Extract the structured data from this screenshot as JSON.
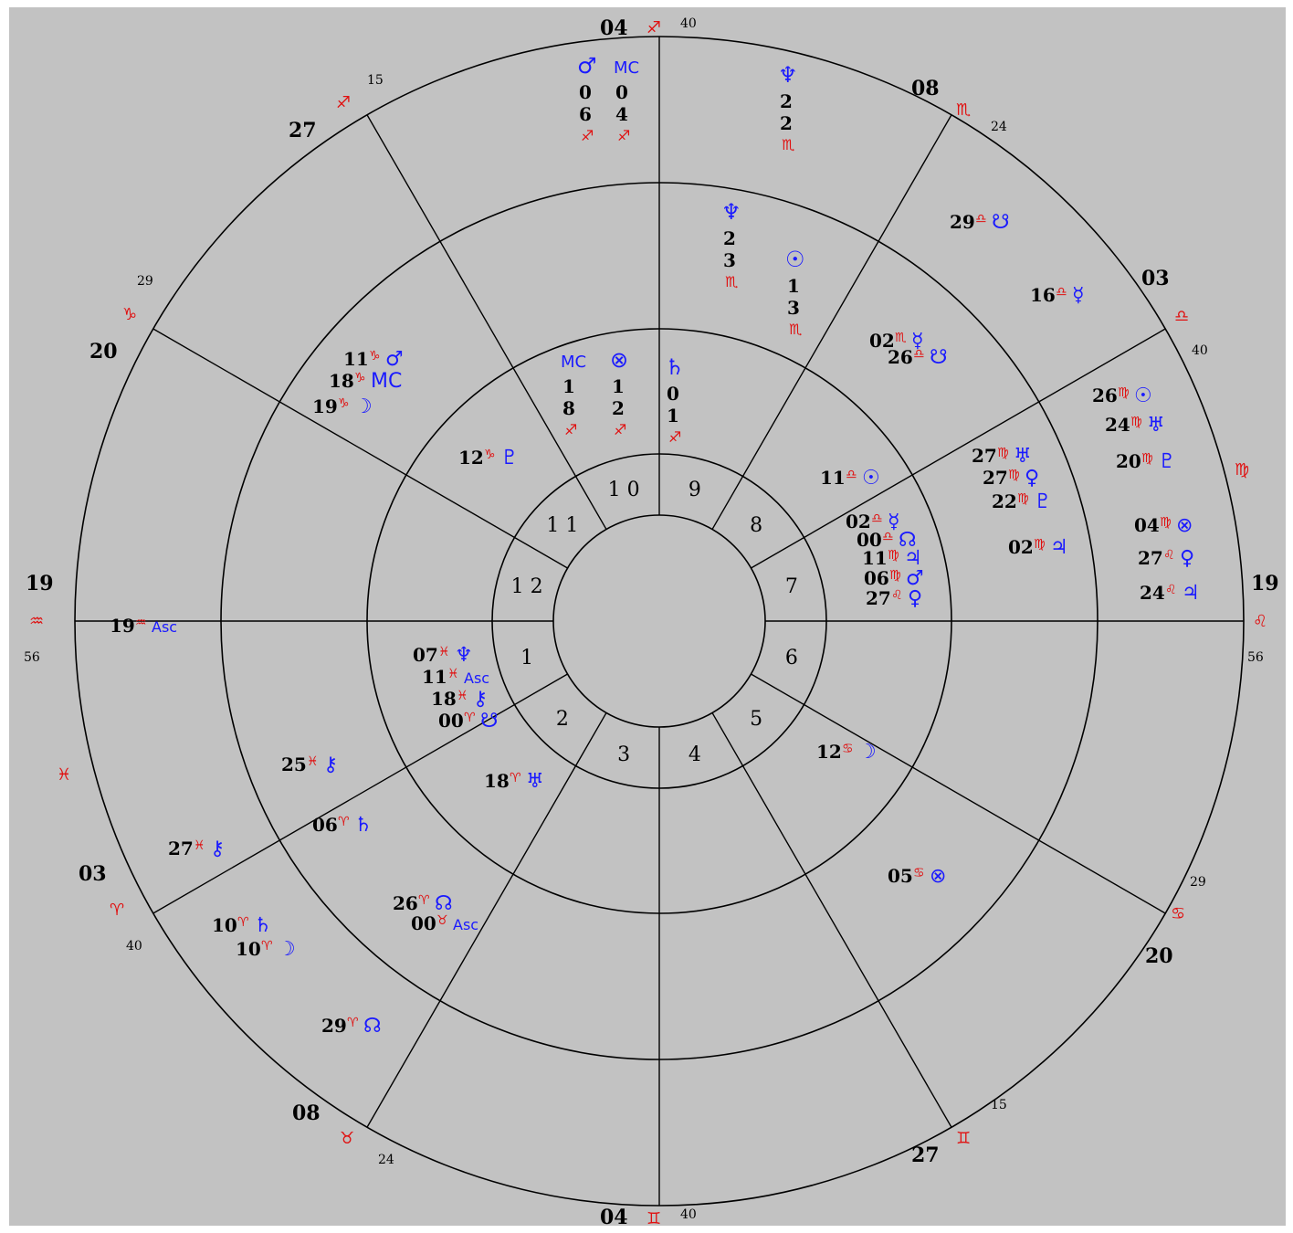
{
  "chart": {
    "house_numbers": [
      "1",
      "2",
      "3",
      "4",
      "5",
      "6",
      "7",
      "8",
      "9",
      "10",
      "11",
      "12"
    ],
    "outer_cusps": [
      {
        "deg": "04",
        "sign": "♐",
        "min": "40"
      },
      {
        "deg": "08",
        "sign": "♏",
        "min": "24"
      },
      {
        "deg": "03",
        "sign": "♎",
        "min": "40"
      },
      {
        "deg": "",
        "sign": "♍",
        "min": ""
      },
      {
        "deg": "19",
        "sign": "♌",
        "min": "56"
      },
      {
        "deg": "20",
        "sign": "♋",
        "min": "29"
      },
      {
        "deg": "27",
        "sign": "♊",
        "min": "15"
      },
      {
        "deg": "04",
        "sign": "♊",
        "min": "40"
      },
      {
        "deg": "08",
        "sign": "♉",
        "min": "24"
      },
      {
        "deg": "03",
        "sign": "♈",
        "min": "40"
      },
      {
        "deg": "",
        "sign": "♓",
        "min": ""
      },
      {
        "deg": "19",
        "sign": "♒",
        "min": "56"
      },
      {
        "deg": "20",
        "sign": "♑",
        "min": "29"
      },
      {
        "deg": "27",
        "sign": "♐",
        "min": "15"
      }
    ],
    "bands": {
      "outer": [
        {
          "glyph": "♂",
          "deg": "06",
          "sign": "♐"
        },
        {
          "glyph": "MC",
          "deg": "04",
          "sign": "♐"
        },
        {
          "glyph": "♆",
          "deg": "22",
          "sign": "♏"
        },
        {
          "glyph": "☋",
          "deg": "29",
          "sign": "♎"
        },
        {
          "glyph": "☿",
          "deg": "16",
          "sign": "♎"
        },
        {
          "glyph": "☉",
          "deg": "26",
          "sign": "♍"
        },
        {
          "glyph": "♅",
          "deg": "24",
          "sign": "♍"
        },
        {
          "glyph": "♇",
          "deg": "20",
          "sign": "♍"
        },
        {
          "glyph": "⊗",
          "deg": "04",
          "sign": "♍"
        },
        {
          "glyph": "♀",
          "deg": "27",
          "sign": "♌"
        },
        {
          "glyph": "♃",
          "deg": "24",
          "sign": "♌"
        },
        {
          "glyph": "⊗",
          "deg": "05",
          "sign": "♋"
        },
        {
          "glyph": "☊",
          "deg": "29",
          "sign": "♈"
        },
        {
          "glyph": "♄",
          "deg": "10",
          "sign": "♈"
        },
        {
          "glyph": "☽",
          "deg": "10",
          "sign": "♈"
        },
        {
          "glyph": "⚷",
          "deg": "27",
          "sign": "♓"
        },
        {
          "glyph": "Asc",
          "deg": "19",
          "sign": "♒"
        }
      ],
      "middle": [
        {
          "glyph": "♆",
          "deg": "23",
          "sign": "♏"
        },
        {
          "glyph": "☉",
          "deg": "13",
          "sign": "♏"
        },
        {
          "glyph": "☿",
          "deg": "02",
          "sign": "♏"
        },
        {
          "glyph": "☋",
          "deg": "26",
          "sign": "♎"
        },
        {
          "glyph": "♅",
          "deg": "27",
          "sign": "♍"
        },
        {
          "glyph": "♀",
          "deg": "27",
          "sign": "♍"
        },
        {
          "glyph": "♇",
          "deg": "22",
          "sign": "♍"
        },
        {
          "glyph": "♃",
          "deg": "02",
          "sign": "♍"
        },
        {
          "glyph": "☽",
          "deg": "12",
          "sign": "♋"
        },
        {
          "glyph": "♄",
          "deg": "06",
          "sign": "♈"
        },
        {
          "glyph": "⚷",
          "deg": "25",
          "sign": "♓"
        },
        {
          "glyph": "☊",
          "deg": "26",
          "sign": "♈"
        },
        {
          "glyph": "Asc",
          "deg": "00",
          "sign": "♉"
        },
        {
          "glyph": "♂",
          "deg": "11",
          "sign": "♑"
        },
        {
          "glyph": "MC",
          "deg": "18",
          "sign": "♑"
        },
        {
          "glyph": "☽",
          "deg": "19",
          "sign": "♑"
        }
      ],
      "inner": [
        {
          "glyph": "MC",
          "deg": "18",
          "sign": "♐"
        },
        {
          "glyph": "⊗",
          "deg": "12",
          "sign": "♐"
        },
        {
          "glyph": "♄",
          "deg": "01",
          "sign": "♐"
        },
        {
          "glyph": "☉",
          "deg": "11",
          "sign": "♎"
        },
        {
          "glyph": "☿",
          "deg": "02",
          "sign": "♎"
        },
        {
          "glyph": "☊",
          "deg": "00",
          "sign": "♎"
        },
        {
          "glyph": "♃",
          "deg": "11",
          "sign": "♍"
        },
        {
          "glyph": "♂",
          "deg": "06",
          "sign": "♍"
        },
        {
          "glyph": "♀",
          "deg": "27",
          "sign": "♌"
        },
        {
          "glyph": "♅",
          "deg": "18",
          "sign": "♈"
        },
        {
          "glyph": "♆",
          "deg": "07",
          "sign": "♓"
        },
        {
          "glyph": "Asc",
          "deg": "11",
          "sign": "♓"
        },
        {
          "glyph": "⚷",
          "deg": "18",
          "sign": "♓"
        },
        {
          "glyph": "☋",
          "deg": "00",
          "sign": "♈"
        },
        {
          "glyph": "♇",
          "deg": "12",
          "sign": "♑"
        }
      ]
    }
  }
}
